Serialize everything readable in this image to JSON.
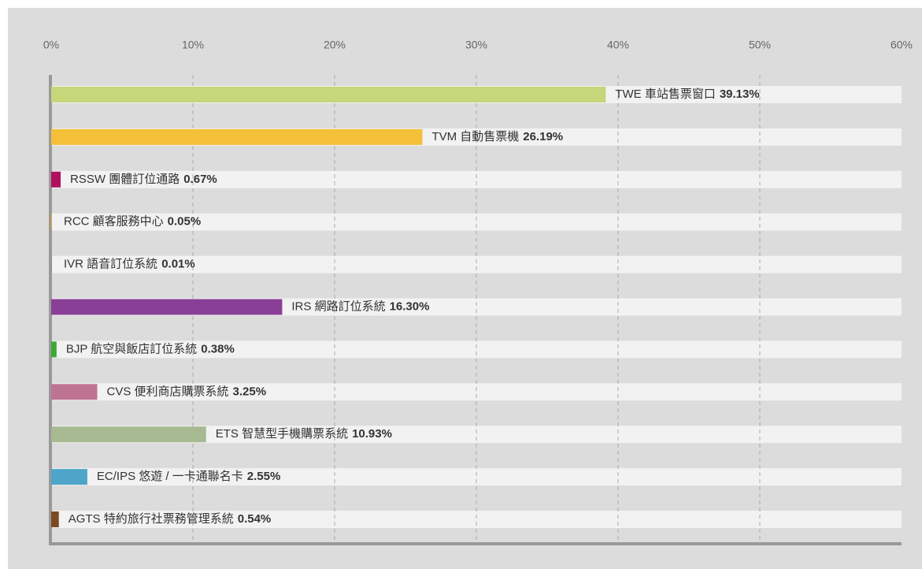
{
  "chart_data": {
    "type": "barh",
    "categories": [
      "TWE 車站售票窗口",
      "TVM 自動售票機",
      "RSSW 團體訂位通路",
      "RCC 顧客服務中心",
      "IVR 語音訂位系統",
      "IRS 網路訂位系統",
      "BJP 航空與飯店訂位系統",
      "CVS 便利商店購票系統",
      "ETS 智慧型手機購票系統",
      "EC/IPS 悠遊 / 一卡通聯名卡",
      "AGTS 特約旅行社票務管理系統"
    ],
    "values": [
      39.13,
      26.19,
      0.67,
      0.05,
      0.01,
      16.3,
      0.38,
      3.25,
      10.93,
      2.55,
      0.54
    ],
    "value_labels": [
      "39.13%",
      "26.19%",
      "0.67%",
      "0.05%",
      "0.01%",
      "16.30%",
      "0.38%",
      "3.25%",
      "10.93%",
      "2.55%",
      "0.54%"
    ],
    "colors": [
      "#c5d67b",
      "#f4c037",
      "#b0115f",
      "#f5a623",
      "#1f5fa8",
      "#8a3f96",
      "#3aaa35",
      "#bf7393",
      "#a7ba92",
      "#4ea5c9",
      "#7a4a22"
    ],
    "xlim": [
      0,
      60
    ],
    "xticks": [
      {
        "value": 0,
        "label": "0%"
      },
      {
        "value": 10,
        "label": "10%"
      },
      {
        "value": 20,
        "label": "20%"
      },
      {
        "value": 30,
        "label": "30%"
      },
      {
        "value": 40,
        "label": "40%"
      },
      {
        "value": 50,
        "label": "50%"
      },
      {
        "value": 60,
        "label": "60%"
      }
    ],
    "grid": true
  }
}
